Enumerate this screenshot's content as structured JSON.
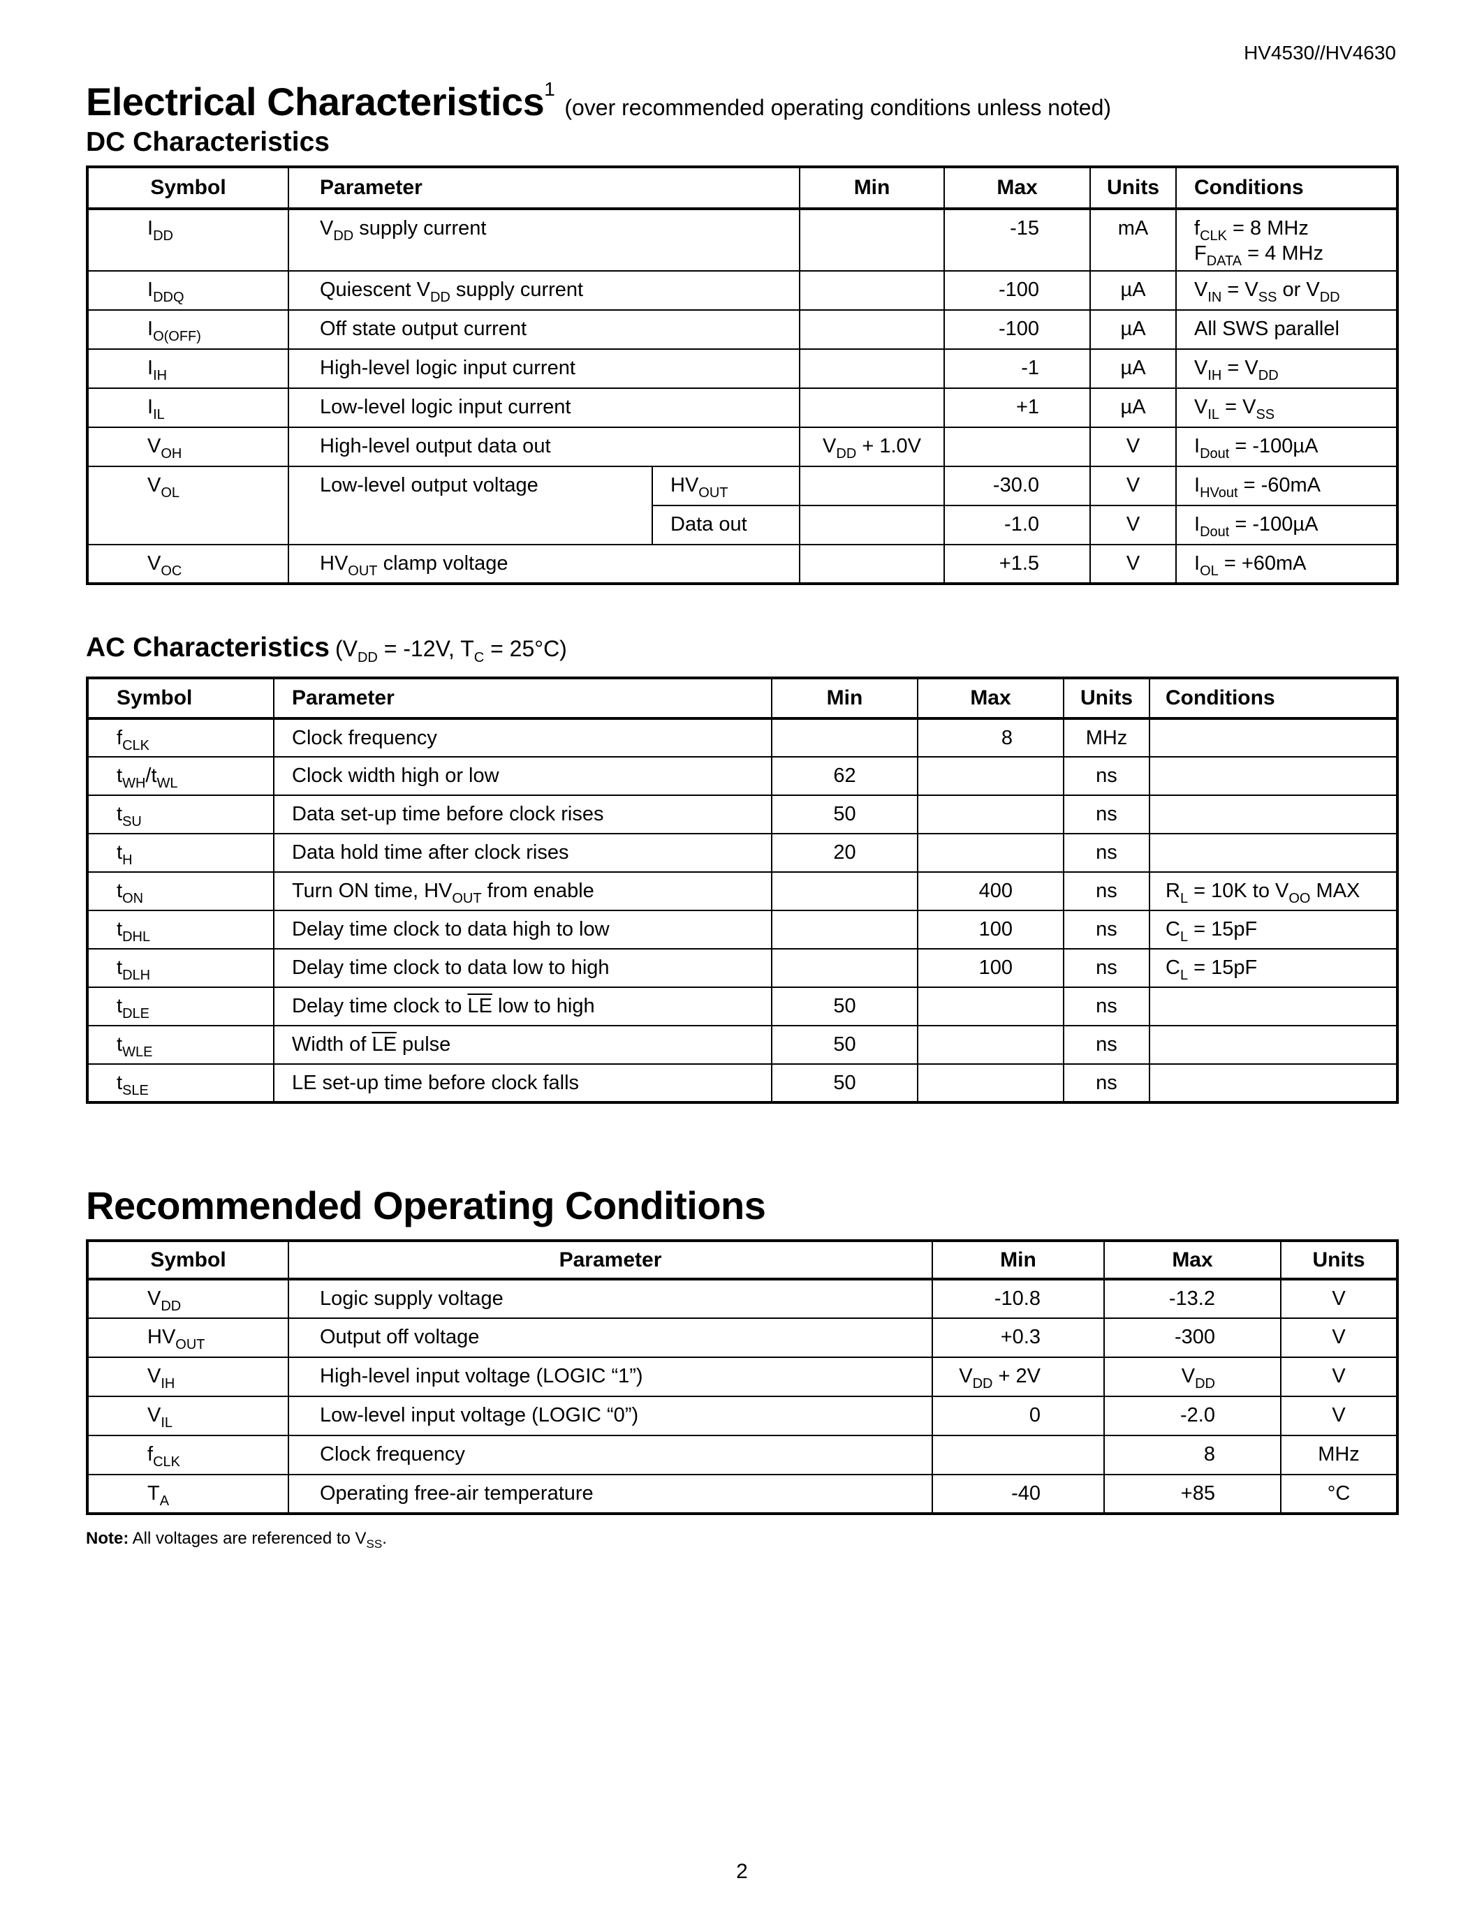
{
  "doc_header": "HV4530//HV4630",
  "title": {
    "main": "Electrical Characteristics",
    "footnote_mark": "1",
    "qualifier": "(over recommended operating conditions unless noted)"
  },
  "dc": {
    "title": "DC Characteristics",
    "headers": [
      "Symbol",
      "Parameter",
      "Min",
      "Max",
      "Units",
      "Conditions"
    ],
    "rows": [
      {
        "symbol": [
          "I",
          {
            "sub": "DD"
          }
        ],
        "param": [
          "V",
          {
            "sub": "DD"
          },
          " supply current"
        ],
        "min": "",
        "max": "-15",
        "units": "mA",
        "cond": [
          "f",
          {
            "sub": "CLK"
          },
          " = 8 MHz",
          {
            "br": true
          },
          "F",
          {
            "sub": "DATA"
          },
          " = 4 MHz"
        ]
      },
      {
        "symbol": [
          "I",
          {
            "sub": "DDQ"
          }
        ],
        "param": [
          "Quiescent V",
          {
            "sub": "DD"
          },
          " supply current"
        ],
        "min": "",
        "max": "-100",
        "units": "µA",
        "cond": [
          "V",
          {
            "sub": "IN"
          },
          " = V",
          {
            "sub": "SS"
          },
          " or V",
          {
            "sub": "DD"
          }
        ]
      },
      {
        "symbol": [
          "I",
          {
            "sub": "O(OFF)"
          }
        ],
        "param": [
          "Off state output current"
        ],
        "min": "",
        "max": "-100",
        "units": "µA",
        "cond": [
          "All SWS parallel"
        ]
      },
      {
        "symbol": [
          "I",
          {
            "sub": "IH"
          }
        ],
        "param": [
          "High-level logic input current"
        ],
        "min": "",
        "max": "-1",
        "units": "µA",
        "cond": [
          "V",
          {
            "sub": "IH"
          },
          " = V",
          {
            "sub": "DD"
          }
        ]
      },
      {
        "symbol": [
          "I",
          {
            "sub": "IL"
          }
        ],
        "param": [
          "Low-level logic input current"
        ],
        "min": "",
        "max": "+1",
        "units": "µA",
        "cond": [
          "V",
          {
            "sub": "IL"
          },
          " = V",
          {
            "sub": "SS"
          }
        ]
      },
      {
        "symbol": [
          "V",
          {
            "sub": "OH"
          }
        ],
        "param": [
          "High-level output data out"
        ],
        "min": [
          "V",
          {
            "sub": "DD"
          },
          " + 1.0V"
        ],
        "max": "",
        "units": "V",
        "cond": [
          "I",
          {
            "sub": "Dout"
          },
          " = -100µA"
        ]
      },
      {
        "symbol": [
          "V",
          {
            "sub": "OL"
          }
        ],
        "param": [
          "Low-level output voltage"
        ],
        "variants": [
          {
            "sub": [
              "HV",
              {
                "sub": "OUT"
              }
            ],
            "min": "",
            "max": "-30.0",
            "units": "V",
            "cond": [
              "I",
              {
                "sub": "HVout"
              },
              " = -60mA"
            ]
          },
          {
            "sub": [
              "Data out"
            ],
            "min": "",
            "max": "-1.0",
            "units": "V",
            "cond": [
              "I",
              {
                "sub": "Dout"
              },
              " = -100µA"
            ]
          }
        ]
      },
      {
        "symbol": [
          "V",
          {
            "sub": "OC"
          }
        ],
        "param": [
          "HV",
          {
            "sub": "OUT"
          },
          " clamp voltage"
        ],
        "min": "",
        "max": "+1.5",
        "units": "V",
        "cond": [
          "I",
          {
            "sub": "OL"
          },
          " = +60mA"
        ]
      }
    ]
  },
  "ac": {
    "title": "AC Characteristics",
    "qualifier": [
      "(V",
      {
        "sub": "DD"
      },
      " = -12V, T",
      {
        "sub": "C"
      },
      " = 25°C)"
    ],
    "headers": [
      "Symbol",
      "Parameter",
      "Min",
      "Max",
      "Units",
      "Conditions"
    ],
    "rows": [
      {
        "symbol": [
          "f",
          {
            "sub": "CLK"
          }
        ],
        "param": [
          "Clock frequency"
        ],
        "min": "",
        "max": "8",
        "units": "MHz",
        "cond": [
          ""
        ]
      },
      {
        "symbol": [
          "t",
          {
            "sub": "WH"
          },
          "/t",
          {
            "sub": "WL"
          }
        ],
        "param": [
          "Clock width high or low"
        ],
        "min": "62",
        "max": "",
        "units": "ns",
        "cond": [
          ""
        ]
      },
      {
        "symbol": [
          "t",
          {
            "sub": "SU"
          }
        ],
        "param": [
          "Data set-up time before clock rises"
        ],
        "min": "50",
        "max": "",
        "units": "ns",
        "cond": [
          ""
        ]
      },
      {
        "symbol": [
          "t",
          {
            "sub": "H"
          }
        ],
        "param": [
          "Data hold time after clock rises"
        ],
        "min": "20",
        "max": "",
        "units": "ns",
        "cond": [
          ""
        ]
      },
      {
        "symbol": [
          "t",
          {
            "sub": "ON"
          }
        ],
        "param": [
          "Turn ON time, HV",
          {
            "sub": "OUT"
          },
          " from enable"
        ],
        "min": "",
        "max": "400",
        "units": "ns",
        "cond": [
          "R",
          {
            "sub": "L"
          },
          " = 10K to V",
          {
            "sub": "OO"
          },
          " MAX"
        ]
      },
      {
        "symbol": [
          "t",
          {
            "sub": "DHL"
          }
        ],
        "param": [
          "Delay time clock to data high to low"
        ],
        "min": "",
        "max": "100",
        "units": "ns",
        "cond": [
          "C",
          {
            "sub": "L"
          },
          " = 15pF"
        ]
      },
      {
        "symbol": [
          "t",
          {
            "sub": "DLH"
          }
        ],
        "param": [
          "Delay time clock to data low to high"
        ],
        "min": "",
        "max": "100",
        "units": "ns",
        "cond": [
          "C",
          {
            "sub": "L"
          },
          " = 15pF"
        ]
      },
      {
        "symbol": [
          "t",
          {
            "sub": "DLE"
          }
        ],
        "param": [
          "Delay time clock to ",
          {
            "over": "LE"
          },
          " low to high"
        ],
        "min": "50",
        "max": "",
        "units": "ns",
        "cond": [
          ""
        ]
      },
      {
        "symbol": [
          "t",
          {
            "sub": "WLE"
          }
        ],
        "param": [
          "Width of ",
          {
            "over": "LE"
          },
          " pulse"
        ],
        "min": "50",
        "max": "",
        "units": "ns",
        "cond": [
          ""
        ]
      },
      {
        "symbol": [
          "t",
          {
            "sub": "SLE"
          }
        ],
        "param": [
          "LE set-up time before clock falls"
        ],
        "min": "50",
        "max": "",
        "units": "ns",
        "cond": [
          ""
        ]
      }
    ]
  },
  "rec": {
    "title": "Recommended Operating Conditions",
    "headers": [
      "Symbol",
      "Parameter",
      "Min",
      "Max",
      "Units"
    ],
    "rows": [
      {
        "symbol": [
          "V",
          {
            "sub": "DD"
          }
        ],
        "param": [
          "Logic supply voltage"
        ],
        "min": "-10.8",
        "max": "-13.2",
        "units": "V"
      },
      {
        "symbol": [
          "HV",
          {
            "sub": "OUT"
          }
        ],
        "param": [
          "Output off voltage"
        ],
        "min": "+0.3",
        "max": "-300",
        "units": "V"
      },
      {
        "symbol": [
          "V",
          {
            "sub": "IH"
          }
        ],
        "param": [
          "High-level input voltage (LOGIC “1”)"
        ],
        "min": [
          "V",
          {
            "sub": "DD"
          },
          " + 2V"
        ],
        "max": [
          "V",
          {
            "sub": "DD"
          }
        ],
        "units": "V"
      },
      {
        "symbol": [
          "V",
          {
            "sub": "IL"
          }
        ],
        "param": [
          "Low-level input voltage (LOGIC “0”)"
        ],
        "min": "0",
        "max": "-2.0",
        "units": "V"
      },
      {
        "symbol": [
          "f",
          {
            "sub": "CLK"
          }
        ],
        "param": [
          "Clock frequency"
        ],
        "min": "",
        "max": "8",
        "units": "MHz"
      },
      {
        "symbol": [
          "T",
          {
            "sub": "A"
          }
        ],
        "param": [
          "Operating free-air temperature"
        ],
        "min": "-40",
        "max": "+85",
        "units": "°C"
      }
    ]
  },
  "note": {
    "label": "Note:",
    "text": [
      "All voltages are referenced to V",
      {
        "sub": "SS"
      },
      "."
    ]
  },
  "page_number": "2"
}
